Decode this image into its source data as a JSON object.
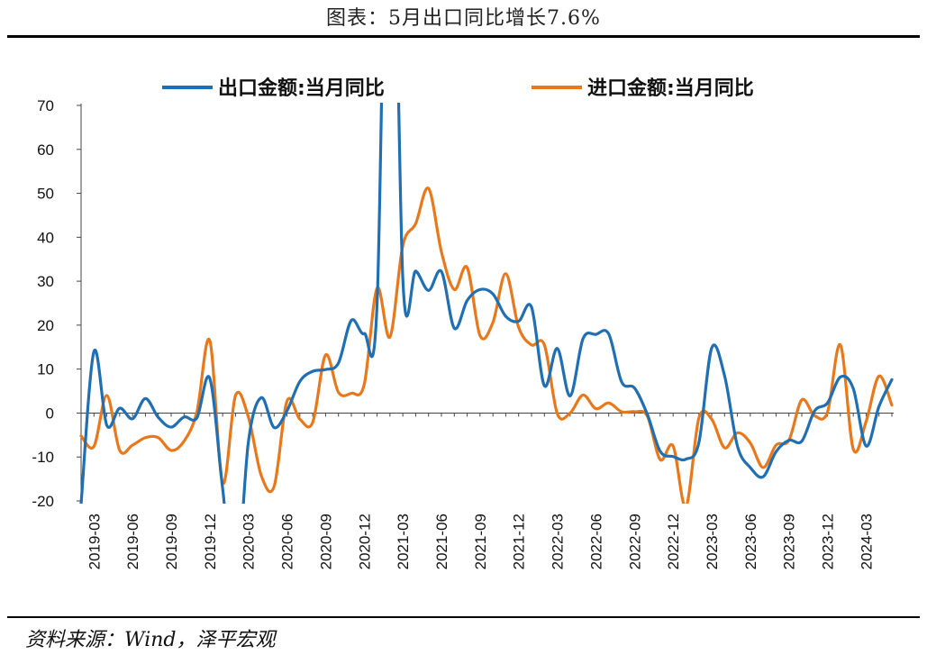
{
  "page": {
    "title": "图表：5月出口同比增长7.6%",
    "source": "资料来源：Wind，泽平宏观"
  },
  "chart_data": {
    "type": "line",
    "ylim": [
      -20,
      70
    ],
    "yticks": [
      -20,
      -10,
      0,
      10,
      20,
      30,
      40,
      50,
      60,
      70
    ],
    "xtick_labels": [
      "2019-03",
      "2019-06",
      "2019-09",
      "2019-12",
      "2020-03",
      "2020-06",
      "2020-09",
      "2020-12",
      "2021-03",
      "2021-06",
      "2021-09",
      "2021-12",
      "2022-03",
      "2022-06",
      "2022-09",
      "2022-12",
      "2023-03",
      "2023-06",
      "2023-09",
      "2023-12",
      "2024-03"
    ],
    "x": [
      "2019-02",
      "2019-03",
      "2019-04",
      "2019-05",
      "2019-06",
      "2019-07",
      "2019-08",
      "2019-09",
      "2019-10",
      "2019-11",
      "2019-12",
      "2020-01",
      "2020-02",
      "2020-03",
      "2020-04",
      "2020-05",
      "2020-06",
      "2020-07",
      "2020-08",
      "2020-09",
      "2020-10",
      "2020-11",
      "2020-12",
      "2021-01",
      "2021-02",
      "2021-03",
      "2021-04",
      "2021-05",
      "2021-06",
      "2021-07",
      "2021-08",
      "2021-09",
      "2021-10",
      "2021-11",
      "2021-12",
      "2022-01",
      "2022-02",
      "2022-03",
      "2022-04",
      "2022-05",
      "2022-06",
      "2022-07",
      "2022-08",
      "2022-09",
      "2022-10",
      "2022-11",
      "2022-12",
      "2023-01",
      "2023-02",
      "2023-03",
      "2023-04",
      "2023-05",
      "2023-06",
      "2023-07",
      "2023-08",
      "2023-09",
      "2023-10",
      "2023-11",
      "2023-12",
      "2024-01",
      "2024-02",
      "2024-03",
      "2024-04",
      "2024-05"
    ],
    "legend_position": "top",
    "series": [
      {
        "name": "出口金额:当月同比",
        "color": "#1f6fb2",
        "values": [
          -20.7,
          14.0,
          -2.8,
          1.1,
          -1.3,
          3.3,
          -1.0,
          -3.2,
          -0.9,
          -1.1,
          7.9,
          -17.2,
          -40.6,
          -6.6,
          3.5,
          -3.3,
          0.5,
          7.2,
          9.5,
          9.9,
          11.4,
          21.1,
          18.1,
          24.9,
          154.9,
          30.6,
          32.3,
          27.9,
          32.2,
          19.3,
          25.6,
          28.1,
          27.1,
          22.0,
          20.9,
          24.1,
          6.2,
          14.7,
          3.9,
          16.9,
          17.9,
          18.0,
          7.1,
          5.7,
          -0.3,
          -8.7,
          -9.9,
          -10.5,
          -6.8,
          14.8,
          8.5,
          -7.5,
          -12.4,
          -14.5,
          -8.8,
          -6.2,
          -6.4,
          0.5,
          2.3,
          8.2,
          5.6,
          -7.5,
          1.5,
          7.6
        ]
      },
      {
        "name": "进口金额:当月同比",
        "color": "#e8781c",
        "values": [
          -5.2,
          -7.6,
          4.0,
          -8.5,
          -7.3,
          -5.6,
          -5.6,
          -8.5,
          -6.4,
          0.3,
          16.5,
          -15.9,
          4.0,
          -0.9,
          -14.2,
          -16.7,
          2.7,
          -1.4,
          -2.1,
          13.2,
          4.7,
          4.5,
          6.5,
          28.4,
          17.3,
          38.1,
          43.1,
          51.1,
          36.7,
          28.1,
          33.1,
          17.6,
          20.6,
          31.7,
          19.5,
          15.5,
          15.5,
          -0.1,
          0.0,
          4.1,
          1.0,
          2.3,
          0.3,
          0.3,
          -0.7,
          -10.6,
          -7.5,
          -21.3,
          -1.2,
          -1.4,
          -7.9,
          -4.5,
          -6.8,
          -12.4,
          -7.3,
          -6.2,
          3.0,
          -0.6,
          0.2,
          15.5,
          -8.2,
          -1.9,
          8.4,
          1.8
        ]
      }
    ]
  }
}
